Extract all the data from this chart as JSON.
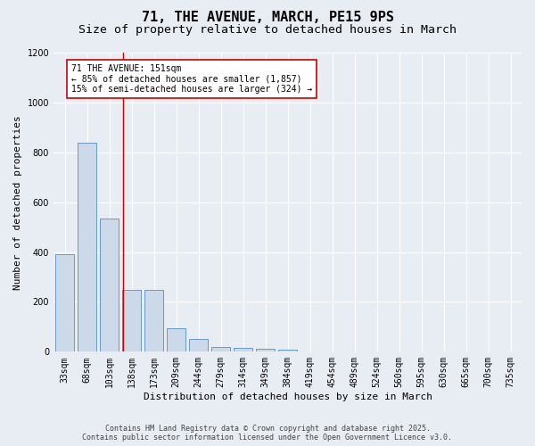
{
  "title": "71, THE AVENUE, MARCH, PE15 9PS",
  "subtitle": "Size of property relative to detached houses in March",
  "xlabel": "Distribution of detached houses by size in March",
  "ylabel": "Number of detached properties",
  "categories": [
    "33sqm",
    "68sqm",
    "103sqm",
    "138sqm",
    "173sqm",
    "209sqm",
    "244sqm",
    "279sqm",
    "314sqm",
    "349sqm",
    "384sqm",
    "419sqm",
    "454sqm",
    "489sqm",
    "524sqm",
    "560sqm",
    "595sqm",
    "630sqm",
    "665sqm",
    "700sqm",
    "735sqm"
  ],
  "values": [
    390,
    840,
    535,
    248,
    248,
    95,
    52,
    20,
    15,
    12,
    8,
    0,
    0,
    0,
    0,
    0,
    0,
    0,
    0,
    0,
    0
  ],
  "bar_color": "#ccd9e8",
  "bar_edge_color": "#6699cc",
  "red_line_x": 2.6,
  "annotation_text": "71 THE AVENUE: 151sqm\n← 85% of detached houses are smaller (1,857)\n15% of semi-detached houses are larger (324) →",
  "annotation_box_facecolor": "#ffffff",
  "annotation_box_edgecolor": "#cc0000",
  "background_color": "#e8edf4",
  "plot_bg_color": "#e8edf4",
  "ylim": [
    0,
    1200
  ],
  "yticks": [
    0,
    200,
    400,
    600,
    800,
    1000,
    1200
  ],
  "footer_line1": "Contains HM Land Registry data © Crown copyright and database right 2025.",
  "footer_line2": "Contains public sector information licensed under the Open Government Licence v3.0.",
  "title_fontsize": 11,
  "subtitle_fontsize": 9.5,
  "tick_fontsize": 7,
  "ylabel_fontsize": 8,
  "xlabel_fontsize": 8,
  "annot_fontsize": 7,
  "footer_fontsize": 6
}
